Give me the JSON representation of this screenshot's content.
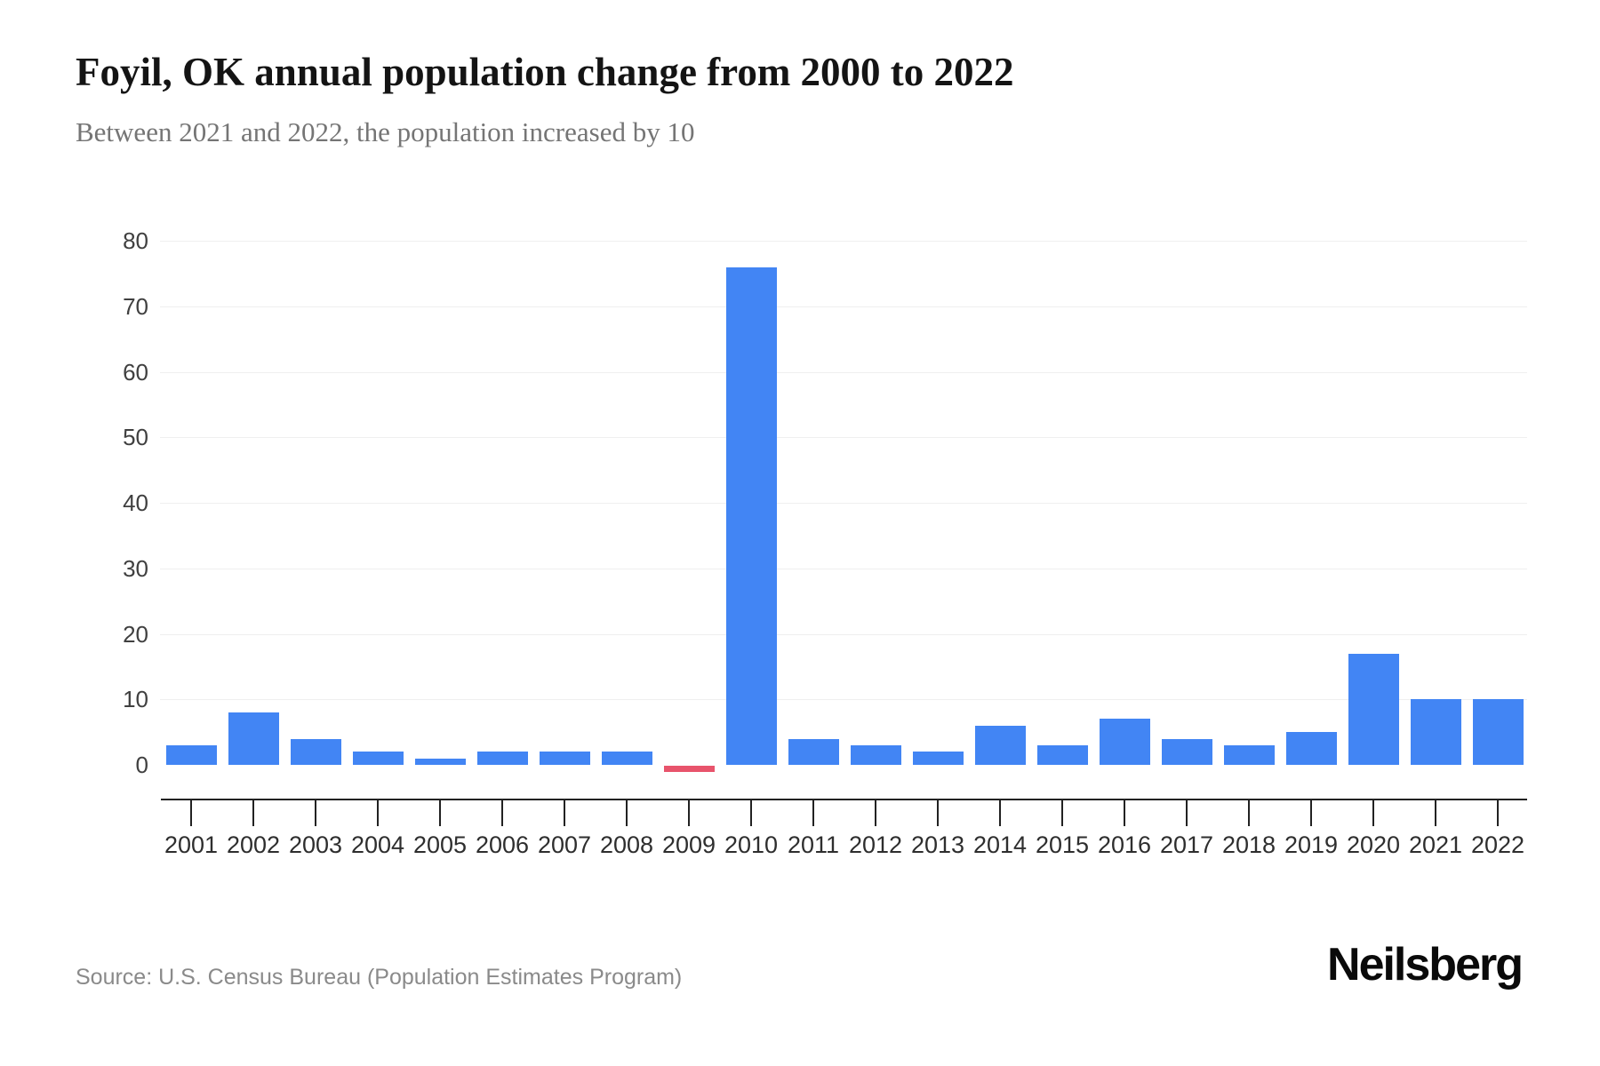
{
  "page": {
    "title": "Foyil, OK annual population change from 2000 to 2022",
    "subtitle": "Between 2021 and 2022, the population increased by 10",
    "source": "Source: U.S. Census Bureau (Population Estimates Program)",
    "brand": "Neilsberg"
  },
  "colors": {
    "bar_positive": "#4285f4",
    "bar_negative": "#e8546c",
    "gridline": "#efefef",
    "axis": "#222222",
    "title_text": "#141414",
    "subtitle_text": "#757575",
    "tick_label": "#404040",
    "source_text": "#8a8a8a"
  },
  "chart_data": {
    "type": "bar",
    "title": "Foyil, OK annual population change from 2000 to 2022",
    "subtitle": "Between 2021 and 2022, the population increased by 10",
    "categories": [
      "2001",
      "2002",
      "2003",
      "2004",
      "2005",
      "2006",
      "2007",
      "2008",
      "2009",
      "2010",
      "2011",
      "2012",
      "2013",
      "2014",
      "2015",
      "2016",
      "2017",
      "2018",
      "2019",
      "2020",
      "2021",
      "2022"
    ],
    "values": [
      3,
      8,
      4,
      2,
      1,
      2,
      2,
      2,
      -1,
      76,
      4,
      3,
      2,
      6,
      3,
      7,
      4,
      3,
      5,
      17,
      10,
      10
    ],
    "xlabel": "",
    "ylabel": "",
    "ylim": [
      0,
      80
    ],
    "yticks": [
      0,
      10,
      20,
      30,
      40,
      50,
      60,
      70,
      80
    ],
    "grid": true,
    "legend": "none",
    "negative_bar_years": [
      "2009"
    ]
  }
}
